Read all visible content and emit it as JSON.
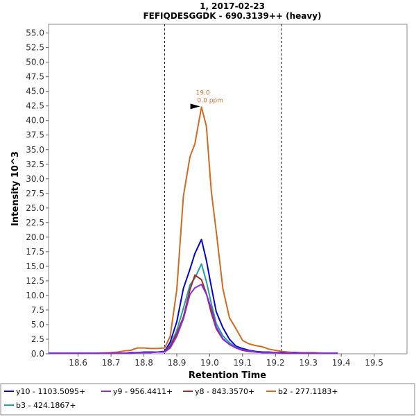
{
  "chart_data": {
    "type": "line",
    "title": "1, 2017-02-23",
    "subtitle": "FEFIQDESGGDK - 690.3139++ (heavy)",
    "xlabel": "Retention Time",
    "ylabel": "Intensity 10^3",
    "xlim": [
      18.51,
      19.6
    ],
    "ylim": [
      0,
      56.5
    ],
    "xticks": [
      "18.6",
      "18.7",
      "18.8",
      "18.9",
      "19.0",
      "19.1",
      "19.2",
      "19.3",
      "19.4",
      "19.5"
    ],
    "yticks": [
      "0.0",
      "2.5",
      "5.0",
      "7.5",
      "10.0",
      "12.5",
      "15.0",
      "17.5",
      "20.0",
      "22.5",
      "25.0",
      "27.5",
      "30.0",
      "32.5",
      "35.0",
      "37.5",
      "40.0",
      "42.5",
      "45.0",
      "47.5",
      "50.0",
      "52.5",
      "55.0"
    ],
    "boundaries": [
      18.863,
      19.218
    ],
    "x": [
      18.51,
      18.55,
      18.6,
      18.65,
      18.7,
      18.72,
      18.74,
      18.76,
      18.78,
      18.8,
      18.82,
      18.84,
      18.863,
      18.88,
      18.9,
      18.92,
      18.94,
      18.955,
      18.975,
      18.99,
      19.005,
      19.02,
      19.04,
      19.06,
      19.08,
      19.1,
      19.12,
      19.14,
      19.16,
      19.18,
      19.2,
      19.22,
      19.24,
      19.26,
      19.28,
      19.3,
      19.32,
      19.34,
      19.36,
      19.38,
      19.39
    ],
    "series": [
      {
        "name": "y10 - 1103.5095+",
        "color": "#0000dd",
        "values": [
          0.1,
          0.1,
          0.1,
          0.1,
          0.1,
          0.1,
          0.1,
          0.2,
          0.2,
          0.3,
          0.3,
          0.3,
          0.4,
          2.0,
          5.5,
          11.2,
          14.5,
          17.2,
          19.6,
          16.0,
          11.5,
          7.2,
          4.5,
          2.5,
          1.3,
          0.9,
          0.6,
          0.4,
          0.3,
          0.3,
          0.2,
          0.2,
          0.1,
          0.2,
          0.1,
          0.1,
          0.1,
          0.1,
          0.1,
          0.1,
          0.1
        ]
      },
      {
        "name": "y9 - 956.4411+",
        "color": "#8a2be2",
        "values": [
          0.1,
          0.1,
          0.1,
          0.1,
          0.1,
          0.1,
          0.1,
          0.1,
          0.2,
          0.2,
          0.2,
          0.3,
          0.3,
          1.0,
          3.0,
          6.0,
          10.2,
          11.3,
          11.9,
          10.2,
          7.8,
          4.6,
          2.6,
          1.6,
          1.0,
          0.7,
          0.5,
          0.3,
          0.2,
          0.2,
          0.2,
          0.1,
          0.1,
          0.1,
          0.1,
          0.1,
          0.1,
          0.1,
          0.1,
          0.1,
          0.1
        ]
      },
      {
        "name": "y8 - 843.3570+",
        "color": "#a52a2a",
        "values": [
          0.1,
          0.1,
          0.1,
          0.1,
          0.1,
          0.1,
          0.1,
          0.1,
          0.2,
          0.2,
          0.2,
          0.3,
          0.3,
          1.3,
          3.5,
          6.3,
          11.0,
          13.5,
          12.7,
          10.3,
          7.0,
          4.3,
          2.5,
          1.6,
          1.0,
          0.6,
          0.4,
          0.3,
          0.2,
          0.2,
          0.2,
          0.1,
          0.1,
          0.1,
          0.1,
          0.1,
          0.1,
          0.1,
          0.1,
          0.1,
          0.1
        ]
      },
      {
        "name": "b2 - 277.1183+",
        "color": "#d2691e",
        "values": [
          0.1,
          0.1,
          0.1,
          0.1,
          0.2,
          0.3,
          0.5,
          0.6,
          1.0,
          1.0,
          0.9,
          0.9,
          1.0,
          3.0,
          11.0,
          27.0,
          33.8,
          36.0,
          42.3,
          39.0,
          27.8,
          21.0,
          11.2,
          6.2,
          4.3,
          2.3,
          1.7,
          1.4,
          1.2,
          0.8,
          0.6,
          0.4,
          0.3,
          0.2,
          0.2,
          0.2,
          0.2,
          0.1,
          0.1,
          0.1,
          0.1
        ]
      },
      {
        "name": "b3 - 424.1867+",
        "color": "#20a0a0",
        "values": [
          0.1,
          0.1,
          0.1,
          0.1,
          0.1,
          0.1,
          0.1,
          0.1,
          0.2,
          0.2,
          0.2,
          0.3,
          0.3,
          1.5,
          4.0,
          7.8,
          11.8,
          13.0,
          15.4,
          12.4,
          8.6,
          5.2,
          3.1,
          1.9,
          1.1,
          0.7,
          0.5,
          0.3,
          0.2,
          0.2,
          0.2,
          0.1,
          0.1,
          0.1,
          0.1,
          0.1,
          0.1,
          0.1,
          0.1,
          0.1,
          0.1
        ]
      }
    ],
    "annotations": {
      "peak_rt": "19.0",
      "peak_ppm": "0.0 ppm",
      "peak_x": 18.975,
      "peak_y": 42.3,
      "color": "#c87533"
    },
    "legend_position": "bottom"
  }
}
